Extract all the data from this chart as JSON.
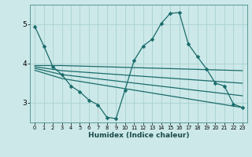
{
  "xlabel": "Humidex (Indice chaleur)",
  "bg_color": "#cce8e8",
  "grid_color": "#aed4d4",
  "line_color": "#1a6b6b",
  "xlim": [
    -0.5,
    23.5
  ],
  "ylim": [
    2.5,
    5.5
  ],
  "yticks": [
    3,
    4,
    5
  ],
  "xticks": [
    0,
    1,
    2,
    3,
    4,
    5,
    6,
    7,
    8,
    9,
    10,
    11,
    12,
    13,
    14,
    15,
    16,
    17,
    18,
    19,
    20,
    21,
    22,
    23
  ],
  "series_main": {
    "x": [
      0,
      1,
      2,
      3,
      4,
      5,
      6,
      7,
      8,
      9,
      10,
      11,
      12,
      13,
      14,
      15,
      16,
      17,
      18,
      19,
      20,
      21,
      22,
      23
    ],
    "y": [
      4.95,
      4.45,
      3.92,
      3.72,
      3.43,
      3.28,
      3.07,
      2.95,
      2.63,
      2.6,
      3.33,
      4.08,
      4.45,
      4.62,
      5.02,
      5.28,
      5.3,
      4.5,
      4.18,
      3.87,
      3.5,
      3.43,
      2.97,
      2.88
    ]
  },
  "series_lines": [
    {
      "x": [
        0,
        3,
        23
      ],
      "y": [
        3.95,
        3.95,
        3.82
      ]
    },
    {
      "x": [
        0,
        3,
        23
      ],
      "y": [
        3.92,
        3.82,
        3.5
      ]
    },
    {
      "x": [
        0,
        3,
        23
      ],
      "y": [
        3.88,
        3.72,
        3.18
      ]
    },
    {
      "x": [
        0,
        3,
        23
      ],
      "y": [
        3.83,
        3.62,
        2.88
      ]
    }
  ]
}
